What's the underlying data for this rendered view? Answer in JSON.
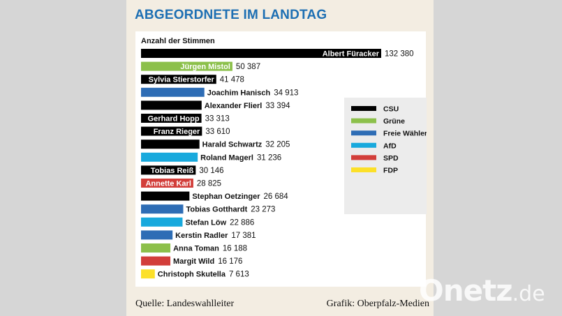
{
  "header": {
    "title": "ABGEORDNETE IM LANDTAG"
  },
  "colors": {
    "CSU": "#000000",
    "Grüne": "#8cc04b",
    "Freie Wähler": "#2e6db5",
    "AfD": "#18a9dd",
    "SPD": "#d23e3a",
    "FDP": "#fce029",
    "title": "#1d6fb3"
  },
  "chart_data": {
    "type": "bar",
    "orientation": "horizontal",
    "title": "ABGEORDNETE IM LANDTAG",
    "subtitle": "Anzahl der Stimmen",
    "bars": [
      {
        "name": "Albert Füracker",
        "party": "CSU",
        "value": 132380,
        "value_label": "132 380"
      },
      {
        "name": "Jürgen Mistol",
        "party": "Grüne",
        "value": 50387,
        "value_label": "50 387"
      },
      {
        "name": "Sylvia Stierstorfer",
        "party": "CSU",
        "value": 41478,
        "value_label": "41 478"
      },
      {
        "name": "Joachim Hanisch",
        "party": "Freie Wähler",
        "value": 34913,
        "value_label": "34 913"
      },
      {
        "name": "Alexander Flierl",
        "party": "CSU",
        "value": 33394,
        "value_label": "33 394"
      },
      {
        "name": "Gerhard Hopp",
        "party": "CSU",
        "value": 33313,
        "value_label": "33 313"
      },
      {
        "name": "Franz Rieger",
        "party": "CSU",
        "value": 33610,
        "value_label": "33 610"
      },
      {
        "name": "Harald Schwartz",
        "party": "CSU",
        "value": 32205,
        "value_label": "32 205"
      },
      {
        "name": "Roland Magerl",
        "party": "AfD",
        "value": 31236,
        "value_label": "31 236"
      },
      {
        "name": "Tobias Reiß",
        "party": "CSU",
        "value": 30146,
        "value_label": "30 146"
      },
      {
        "name": "Annette Karl",
        "party": "SPD",
        "value": 28825,
        "value_label": "28 825"
      },
      {
        "name": "Stephan Oetzinger",
        "party": "CSU",
        "value": 26684,
        "value_label": "26 684"
      },
      {
        "name": "Tobias Gotthardt",
        "party": "Freie Wähler",
        "value": 23273,
        "value_label": "23 273"
      },
      {
        "name": "Stefan Löw",
        "party": "AfD",
        "value": 22886,
        "value_label": "22 886"
      },
      {
        "name": "Kerstin Radler",
        "party": "Freie Wähler",
        "value": 17381,
        "value_label": "17 381"
      },
      {
        "name": "Anna Toman",
        "party": "Grüne",
        "value": 16188,
        "value_label": "16 188"
      },
      {
        "name": "Margit Wild",
        "party": "SPD",
        "value": 16176,
        "value_label": "16 176"
      },
      {
        "name": "Christoph Skutella",
        "party": "FDP",
        "value": 7613,
        "value_label": "7 613"
      }
    ],
    "legend": [
      "CSU",
      "Grüne",
      "Freie Wähler",
      "AfD",
      "SPD",
      "FDP"
    ],
    "xlim": [
      0,
      132380
    ]
  },
  "footer": {
    "source": "Quelle: Landeswahlleiter",
    "credit": "Grafik: Oberpfalz-Medien"
  },
  "watermark": {
    "brand": "Onetz",
    "suffix": ".de"
  }
}
